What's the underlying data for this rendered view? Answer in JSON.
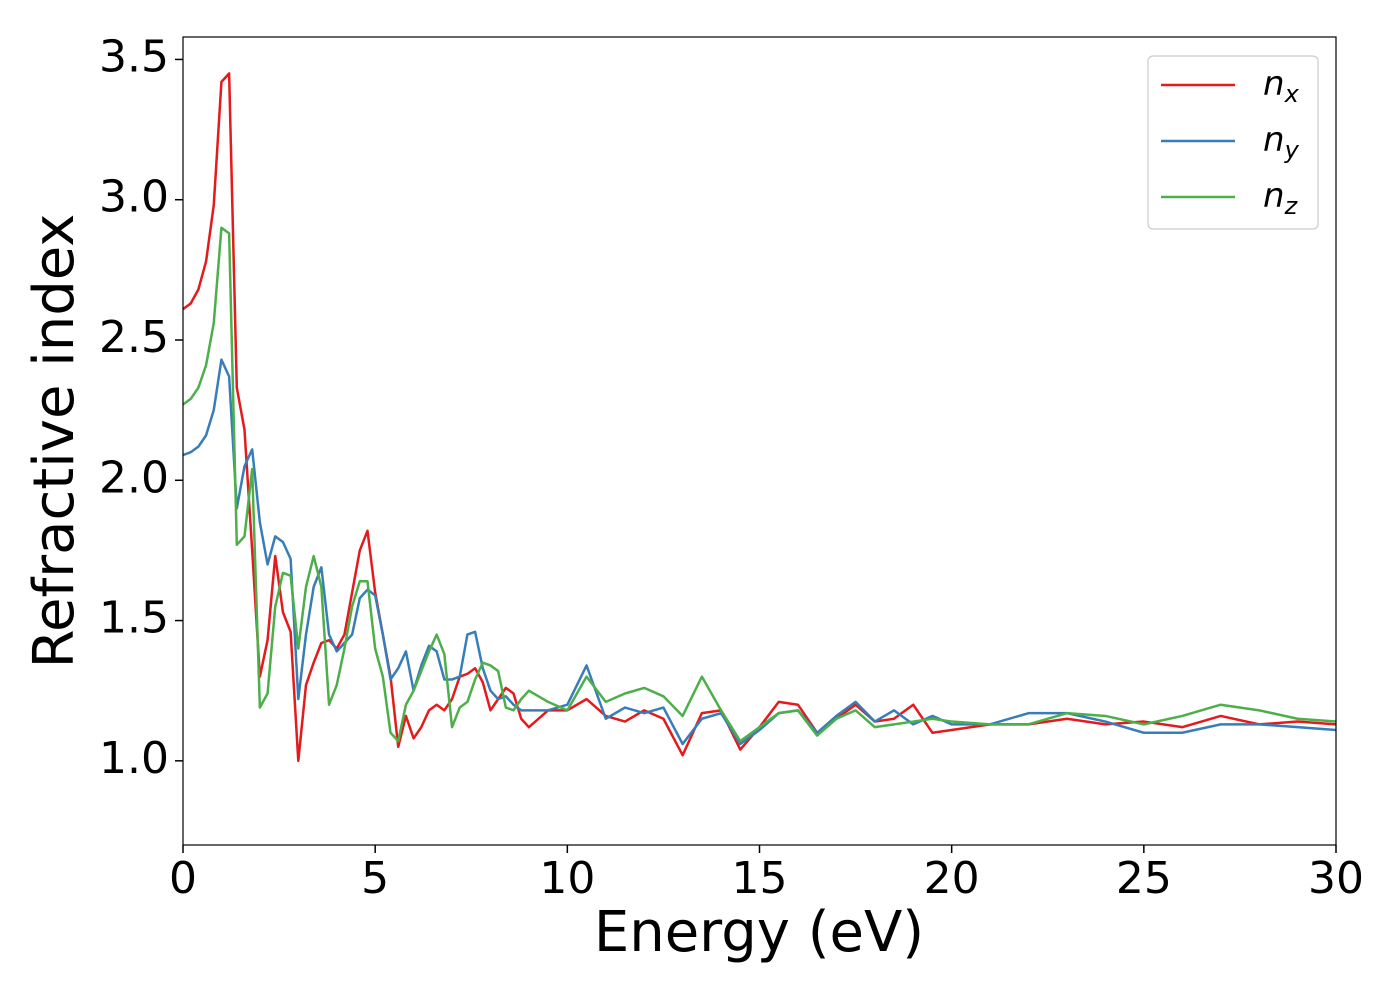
{
  "chart_data": {
    "type": "line",
    "xlabel": "Energy (eV)",
    "ylabel": "Refractive index",
    "x": [
      0,
      0.2,
      0.4,
      0.6,
      0.8,
      1.0,
      1.2,
      1.4,
      1.6,
      1.8,
      2.0,
      2.2,
      2.4,
      2.6,
      2.8,
      3.0,
      3.2,
      3.4,
      3.6,
      3.8,
      4.0,
      4.2,
      4.4,
      4.6,
      4.8,
      5.0,
      5.2,
      5.4,
      5.6,
      5.8,
      6.0,
      6.2,
      6.4,
      6.6,
      6.8,
      7.0,
      7.2,
      7.4,
      7.6,
      7.8,
      8.0,
      8.2,
      8.4,
      8.6,
      8.8,
      9.0,
      9.5,
      10,
      10.5,
      11,
      11.5,
      12,
      12.5,
      13,
      13.5,
      14,
      14.5,
      15,
      15.5,
      16,
      16.5,
      17,
      17.5,
      18,
      18.5,
      19,
      19.5,
      20,
      21,
      22,
      23,
      24,
      25,
      26,
      27,
      28,
      29,
      30
    ],
    "series": [
      {
        "name": "nx",
        "color": "#e41a1c",
        "values": [
          2.61,
          2.63,
          2.68,
          2.78,
          2.98,
          3.42,
          3.45,
          2.33,
          2.18,
          1.75,
          1.3,
          1.43,
          1.73,
          1.53,
          1.46,
          1.0,
          1.27,
          1.35,
          1.42,
          1.43,
          1.4,
          1.45,
          1.6,
          1.75,
          1.82,
          1.6,
          1.45,
          1.3,
          1.05,
          1.16,
          1.08,
          1.12,
          1.18,
          1.2,
          1.18,
          1.22,
          1.3,
          1.31,
          1.33,
          1.28,
          1.18,
          1.22,
          1.26,
          1.24,
          1.15,
          1.12,
          1.18,
          1.18,
          1.22,
          1.16,
          1.14,
          1.18,
          1.15,
          1.02,
          1.17,
          1.18,
          1.04,
          1.12,
          1.21,
          1.2,
          1.1,
          1.15,
          1.2,
          1.14,
          1.15,
          1.2,
          1.1,
          1.11,
          1.13,
          1.13,
          1.15,
          1.13,
          1.14,
          1.12,
          1.16,
          1.13,
          1.14,
          1.13
        ]
      },
      {
        "name": "ny",
        "color": "#377eb8",
        "values": [
          2.09,
          2.1,
          2.12,
          2.16,
          2.25,
          2.43,
          2.37,
          1.9,
          2.05,
          2.11,
          1.85,
          1.7,
          1.8,
          1.78,
          1.72,
          1.22,
          1.45,
          1.62,
          1.69,
          1.45,
          1.39,
          1.42,
          1.45,
          1.58,
          1.61,
          1.59,
          1.45,
          1.29,
          1.33,
          1.39,
          1.25,
          1.34,
          1.41,
          1.39,
          1.29,
          1.29,
          1.3,
          1.45,
          1.46,
          1.33,
          1.25,
          1.22,
          1.23,
          1.2,
          1.18,
          1.18,
          1.18,
          1.2,
          1.34,
          1.15,
          1.19,
          1.17,
          1.19,
          1.06,
          1.15,
          1.17,
          1.06,
          1.11,
          1.17,
          1.18,
          1.1,
          1.16,
          1.21,
          1.14,
          1.18,
          1.13,
          1.16,
          1.13,
          1.13,
          1.17,
          1.17,
          1.14,
          1.1,
          1.1,
          1.13,
          1.13,
          1.12,
          1.11
        ]
      },
      {
        "name": "nz",
        "color": "#4daf4a",
        "values": [
          2.27,
          2.29,
          2.33,
          2.41,
          2.56,
          2.9,
          2.88,
          1.77,
          1.8,
          2.04,
          1.19,
          1.24,
          1.55,
          1.67,
          1.66,
          1.4,
          1.62,
          1.73,
          1.62,
          1.2,
          1.27,
          1.4,
          1.55,
          1.64,
          1.64,
          1.4,
          1.3,
          1.1,
          1.07,
          1.2,
          1.25,
          1.32,
          1.39,
          1.45,
          1.38,
          1.12,
          1.19,
          1.21,
          1.29,
          1.35,
          1.34,
          1.32,
          1.19,
          1.18,
          1.22,
          1.25,
          1.21,
          1.18,
          1.3,
          1.21,
          1.24,
          1.26,
          1.23,
          1.16,
          1.3,
          1.18,
          1.07,
          1.12,
          1.17,
          1.18,
          1.09,
          1.15,
          1.18,
          1.12,
          1.13,
          1.14,
          1.15,
          1.14,
          1.13,
          1.13,
          1.17,
          1.16,
          1.13,
          1.16,
          1.2,
          1.18,
          1.15,
          1.14
        ]
      }
    ],
    "xlim": [
      0,
      30
    ],
    "xticks": [
      0,
      5,
      10,
      15,
      20,
      25,
      30
    ],
    "ylim": [
      0.7,
      3.58
    ],
    "yticks": [
      {
        "value": 1,
        "label": "1.0"
      },
      1.5,
      {
        "value": 2,
        "label": "2.0"
      },
      2.5,
      {
        "value": 3,
        "label": "3.0"
      },
      3.5
    ],
    "grid": false,
    "legend": "upper right"
  }
}
